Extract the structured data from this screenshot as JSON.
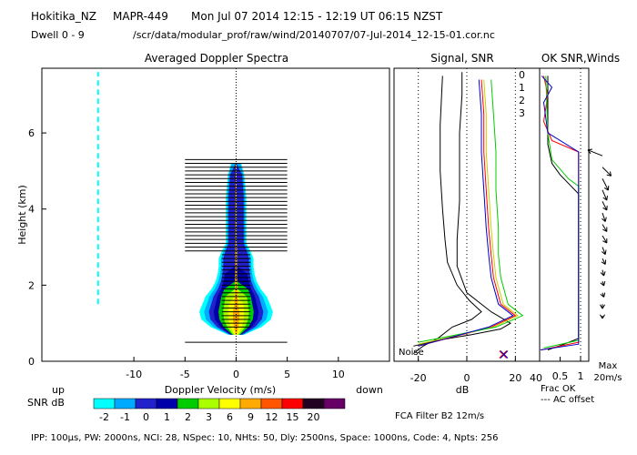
{
  "header": {
    "station": "Hokitika_NZ",
    "radar": "MAPR-449",
    "datetime": "Mon Jul 07 2014 12:15 - 12:19 UT 06:15 NZST",
    "dwell": "Dwell 0 - 9",
    "filepath": "/scr/data/modular_prof/raw/wind/20140707/07-Jul-2014_12-15-01.cor.nc"
  },
  "footer": {
    "params": "IPP: 100µs, PW: 2000ns, NCI: 28, NSpec: 10, NHts: 50, Dly: 2500ns, Space: 1000ns, Code: 4, Npts: 256",
    "fca": "FCA Filter B2 12m/s"
  },
  "chart_data": [
    {
      "type": "heatmap",
      "title": "Averaged Doppler Spectra",
      "xlabel": "Doppler Velocity (m/s)",
      "ylabel": "Height (km)",
      "xlim": [
        -19,
        15
      ],
      "ylim": [
        0,
        7.7
      ],
      "xticks": [
        -10,
        -5,
        0,
        5,
        10
      ],
      "yticks": [
        0,
        2,
        4,
        6
      ],
      "left_label": "up",
      "right_label": "down",
      "colorbar": {
        "label": "SNR dB",
        "ticks": [
          "-2",
          "-1",
          "0",
          "1",
          "2",
          "3",
          "6",
          "9",
          "12",
          "15",
          "20"
        ],
        "colors": [
          "#00ffff",
          "#00aaff",
          "#2222cc",
          "#0000aa",
          "#00cc00",
          "#aaff00",
          "#ffff00",
          "#ffaa00",
          "#ff5500",
          "#ff0000",
          "#220022",
          "#660066"
        ]
      },
      "spectra_profile": [
        {
          "h": 0.7,
          "w": 0.8,
          "level": 6
        },
        {
          "h": 0.9,
          "w": 2.5,
          "level": 7
        },
        {
          "h": 1.1,
          "w": 3.4,
          "level": 7
        },
        {
          "h": 1.3,
          "w": 3.6,
          "level": 7
        },
        {
          "h": 1.5,
          "w": 3.3,
          "level": 6
        },
        {
          "h": 1.7,
          "w": 3.0,
          "level": 5
        },
        {
          "h": 1.9,
          "w": 2.4,
          "level": 4
        },
        {
          "h": 2.1,
          "w": 2.0,
          "level": 3
        },
        {
          "h": 2.3,
          "w": 1.8,
          "level": 3
        },
        {
          "h": 2.5,
          "w": 1.7,
          "level": 2
        },
        {
          "h": 2.7,
          "w": 1.7,
          "level": 2
        },
        {
          "h": 2.9,
          "w": 1.4,
          "level": 2
        },
        {
          "h": 3.1,
          "w": 1.0,
          "level": 2
        },
        {
          "h": 3.4,
          "w": 1.0,
          "level": 2
        },
        {
          "h": 3.7,
          "w": 1.0,
          "level": 2
        },
        {
          "h": 4.0,
          "w": 1.0,
          "level": 2
        },
        {
          "h": 4.3,
          "w": 1.0,
          "level": 2
        },
        {
          "h": 4.6,
          "w": 0.9,
          "level": 2
        },
        {
          "h": 4.9,
          "w": 0.8,
          "level": 2
        },
        {
          "h": 5.2,
          "w": 0.5,
          "level": 1
        }
      ],
      "noise_lines": {
        "h_from": 2.9,
        "h_to": 5.3,
        "spacing": 0.1,
        "x_from": -5,
        "x_to": 5,
        "extra_h": [
          0.5
        ]
      }
    },
    {
      "type": "line",
      "title": "Signal, SNR",
      "xlabel": "dB",
      "xlim": [
        -30,
        30
      ],
      "xticks": [
        -20,
        0,
        20,
        40
      ],
      "noise_label": "Noise",
      "legend": [
        "0",
        "1",
        "2",
        "3"
      ],
      "legend_colors": [
        "#ff0000",
        "#cccc00",
        "#00cc00",
        "#0000cc"
      ],
      "series": [
        {
          "name": "noise",
          "color": "#000000",
          "points": [
            [
              -22,
              0.2
            ],
            [
              -18,
              0.4
            ],
            [
              -12,
              0.6
            ],
            [
              -6,
              0.9
            ],
            [
              2,
              1.1
            ],
            [
              6,
              1.3
            ],
            [
              1,
              1.6
            ],
            [
              -4,
              2.0
            ],
            [
              -8,
              2.6
            ],
            [
              -9,
              3.2
            ],
            [
              -10,
              4.0
            ],
            [
              -11,
              5.0
            ],
            [
              -11,
              6.2
            ],
            [
              -10,
              7.5
            ]
          ]
        },
        {
          "name": "signal",
          "color": "#000000",
          "points": [
            [
              -22,
              0.4
            ],
            [
              -12,
              0.55
            ],
            [
              2,
              0.7
            ],
            [
              14,
              0.85
            ],
            [
              18,
              1.0
            ],
            [
              10,
              1.3
            ],
            [
              0,
              1.8
            ],
            [
              -4,
              2.5
            ],
            [
              -4,
              3.2
            ],
            [
              -3,
              4.2
            ],
            [
              -3,
              5.0
            ],
            [
              -3,
              6.0
            ],
            [
              -2,
              7.0
            ],
            [
              -2,
              7.6
            ]
          ]
        },
        {
          "name": "0",
          "color": "#ff0000",
          "points": [
            [
              -20,
              0.4
            ],
            [
              10,
              0.9
            ],
            [
              20,
              1.2
            ],
            [
              14,
              1.5
            ],
            [
              11,
              2.2
            ],
            [
              10,
              2.8
            ],
            [
              9,
              3.5
            ],
            [
              8,
              4.5
            ],
            [
              7,
              5.5
            ],
            [
              7,
              6.5
            ],
            [
              6,
              7.4
            ]
          ]
        },
        {
          "name": "1",
          "color": "#cccc00",
          "points": [
            [
              -20,
              0.45
            ],
            [
              11,
              0.9
            ],
            [
              21,
              1.2
            ],
            [
              15,
              1.5
            ],
            [
              12,
              2.2
            ],
            [
              11,
              2.8
            ],
            [
              10,
              3.5
            ],
            [
              9,
              4.5
            ],
            [
              8,
              5.5
            ],
            [
              8,
              6.5
            ],
            [
              7,
              7.4
            ]
          ]
        },
        {
          "name": "2",
          "color": "#00cc00",
          "points": [
            [
              -20,
              0.5
            ],
            [
              12,
              0.9
            ],
            [
              23,
              1.2
            ],
            [
              17,
              1.5
            ],
            [
              14,
              2.2
            ],
            [
              13,
              2.8
            ],
            [
              13,
              3.5
            ],
            [
              12,
              4.5
            ],
            [
              12,
              5.5
            ],
            [
              11,
              6.5
            ],
            [
              10,
              7.4
            ]
          ]
        },
        {
          "name": "3",
          "color": "#0000cc",
          "points": [
            [
              -20,
              0.4
            ],
            [
              9,
              0.9
            ],
            [
              19,
              1.2
            ],
            [
              13,
              1.5
            ],
            [
              10,
              2.2
            ],
            [
              9,
              2.8
            ],
            [
              8,
              3.5
            ],
            [
              7,
              4.5
            ],
            [
              6,
              5.5
            ],
            [
              6,
              6.5
            ],
            [
              5,
              7.4
            ]
          ]
        }
      ],
      "markers": [
        [
          15,
          0.18
        ]
      ]
    },
    {
      "type": "line",
      "title": "OK SNR,Winds",
      "xlabel": "Frac OK",
      "xlim": [
        0,
        1.2
      ],
      "xticks": [
        "0.5",
        "1"
      ],
      "note": "--- AC offset",
      "max_label": "Max",
      "max_value": "20m/s",
      "series": [
        {
          "name": "frac-black",
          "color": "#000000",
          "points": [
            [
              0.2,
              0.3
            ],
            [
              0.6,
              0.45
            ],
            [
              0.95,
              0.6
            ],
            [
              0.95,
              4.4
            ],
            [
              0.5,
              4.9
            ],
            [
              0.3,
              5.2
            ],
            [
              0.2,
              5.7
            ],
            [
              0.2,
              7.5
            ]
          ]
        },
        {
          "name": "frac-red",
          "color": "#ff0000",
          "points": [
            [
              0.05,
              0.3
            ],
            [
              0.95,
              0.5
            ],
            [
              0.95,
              5.5
            ],
            [
              0.3,
              5.8
            ],
            [
              0.1,
              6.3
            ],
            [
              0.2,
              7.0
            ],
            [
              0.1,
              7.5
            ]
          ]
        },
        {
          "name": "frac-green",
          "color": "#00cc00",
          "points": [
            [
              0.1,
              0.35
            ],
            [
              0.95,
              0.55
            ],
            [
              0.95,
              4.6
            ],
            [
              0.7,
              4.8
            ],
            [
              0.3,
              5.3
            ],
            [
              0.2,
              6.0
            ],
            [
              0.15,
              7.5
            ]
          ]
        },
        {
          "name": "frac-blue",
          "color": "#0000cc",
          "points": [
            [
              0.02,
              0.3
            ],
            [
              0.95,
              0.45
            ],
            [
              0.95,
              5.5
            ],
            [
              0.2,
              6.0
            ],
            [
              0.1,
              6.8
            ],
            [
              0.3,
              7.2
            ],
            [
              0.05,
              7.5
            ]
          ]
        }
      ],
      "winds": [
        {
          "h": 5.4,
          "u": -10,
          "v": 4
        },
        {
          "h": 5.1,
          "u": 6,
          "v": -6
        },
        {
          "h": 4.8,
          "u": 4,
          "v": -8
        },
        {
          "h": 4.5,
          "u": 3,
          "v": -7
        },
        {
          "h": 4.2,
          "u": 3,
          "v": -6
        },
        {
          "h": 3.9,
          "u": 2,
          "v": -6
        },
        {
          "h": 3.6,
          "u": 3,
          "v": -5
        },
        {
          "h": 3.3,
          "u": 3,
          "v": -5
        },
        {
          "h": 3.0,
          "u": 2,
          "v": -5
        },
        {
          "h": 2.7,
          "u": 2,
          "v": -4
        },
        {
          "h": 2.4,
          "u": 1,
          "v": -4
        },
        {
          "h": 2.1,
          "u": 1,
          "v": -3
        },
        {
          "h": 1.8,
          "u": 1,
          "v": -3
        },
        {
          "h": 1.5,
          "u": 0,
          "v": -3
        },
        {
          "h": 1.2,
          "u": 0,
          "v": -2
        }
      ]
    }
  ]
}
